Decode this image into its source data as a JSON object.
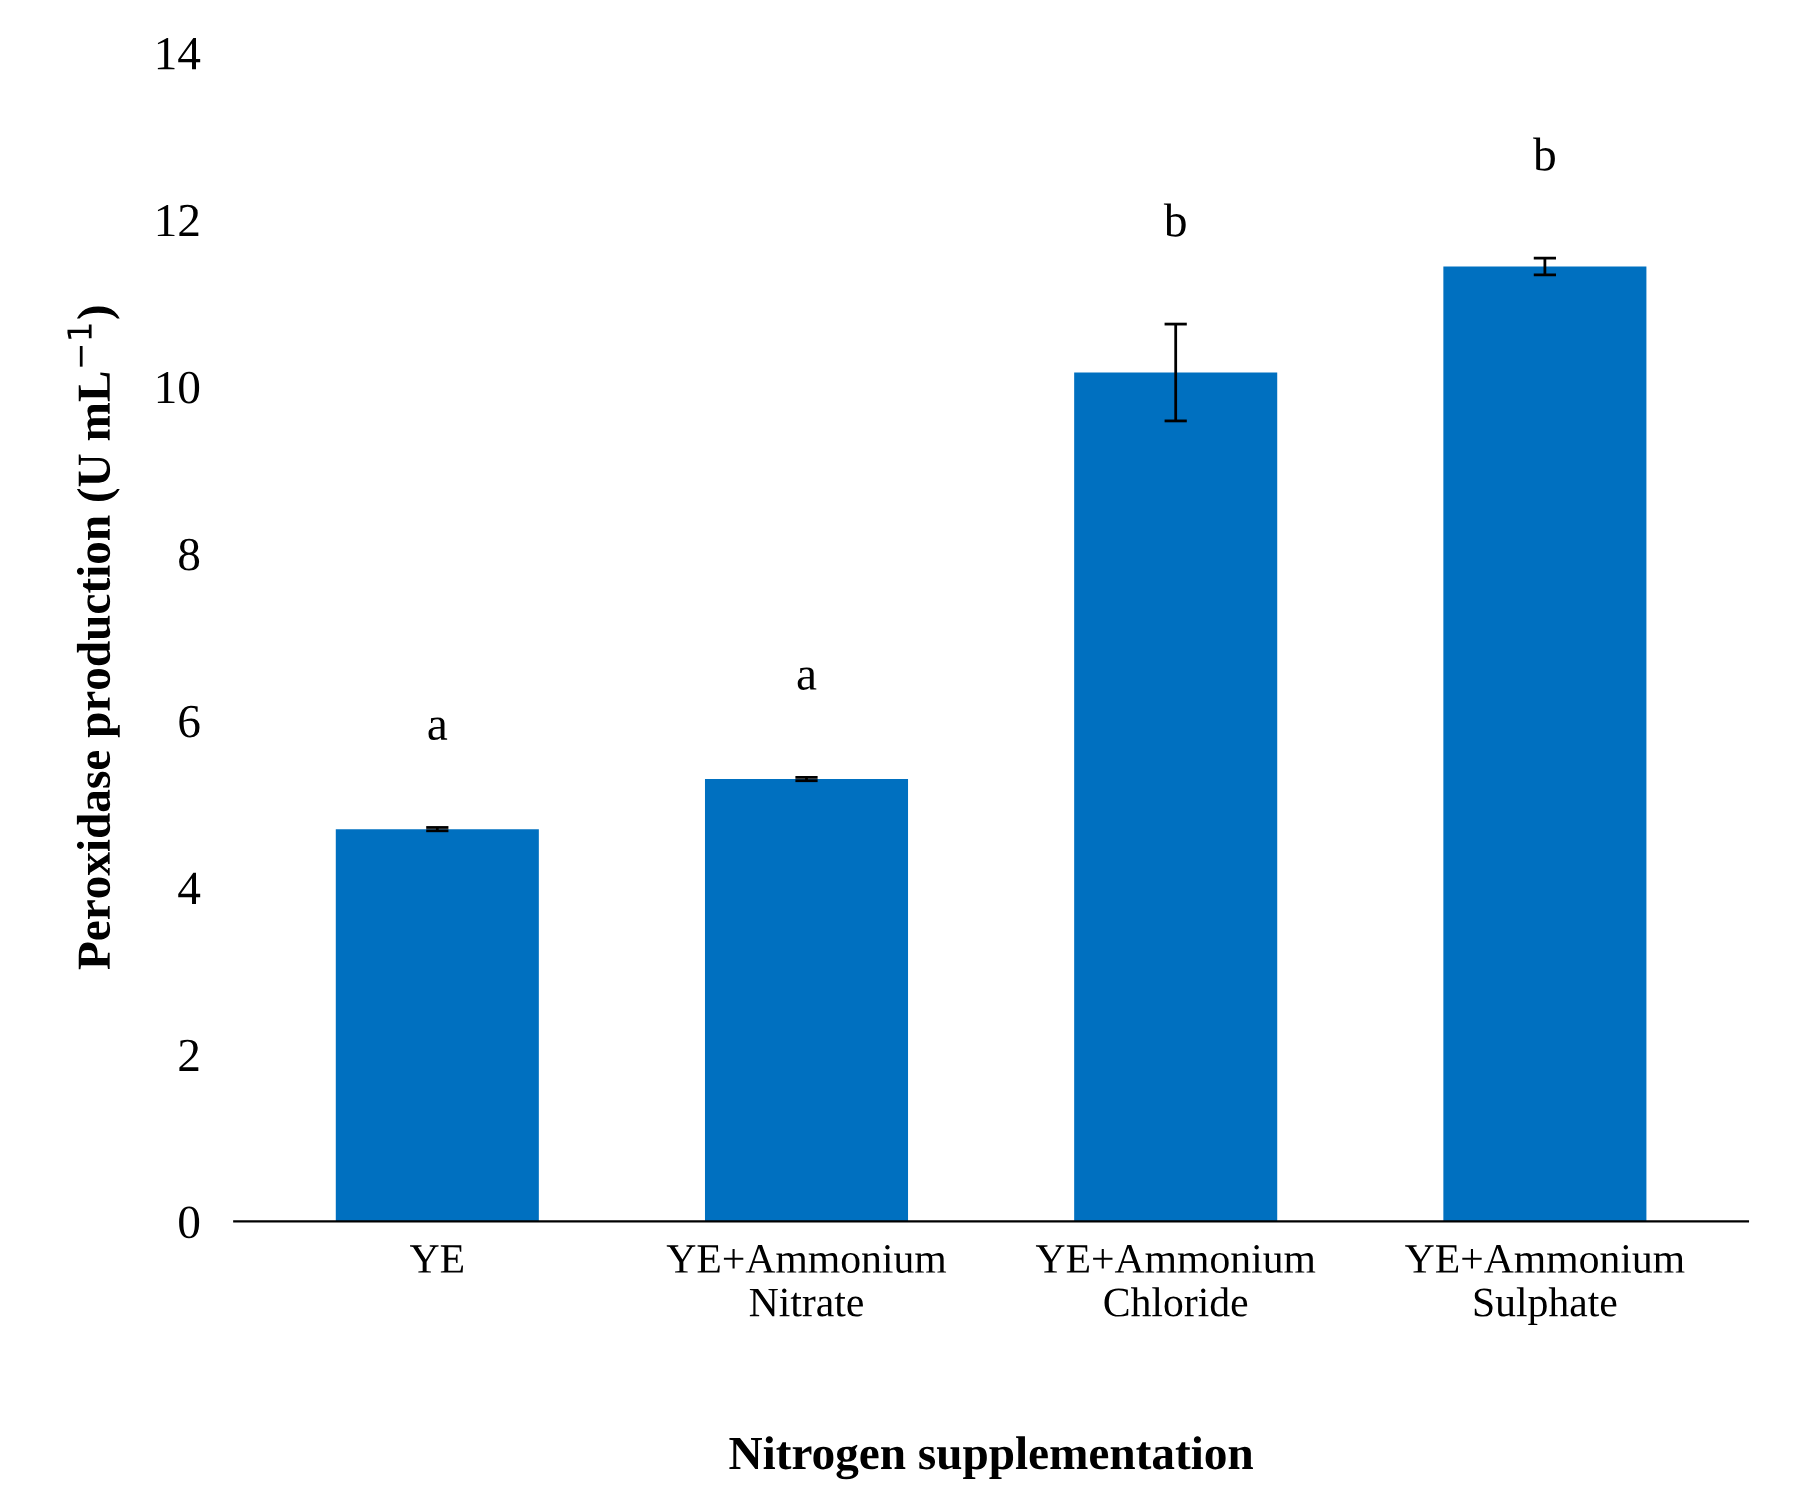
{
  "chart_data": {
    "type": "bar",
    "categories": [
      "YE",
      "YE+Ammonium\nNitrate",
      "YE+Ammonium\nChloride",
      "YE+Ammonium\nSulphate"
    ],
    "values": [
      4.7,
      5.3,
      10.17,
      11.44
    ],
    "errors": [
      0.02,
      0.02,
      0.58,
      0.1
    ],
    "colors": [
      "#0070c0",
      "#0070c0",
      "#0070c0",
      "#0070c0"
    ],
    "xlabel": "Nitrogen supplementation",
    "ylabel": "Peroxidase production (U mL$^{−1}$)",
    "ylim": [
      0,
      14
    ],
    "yticks": [
      0,
      2,
      4,
      6,
      8,
      10,
      12,
      14
    ],
    "grid": false,
    "annotations": [
      "a",
      "a",
      "b",
      "b"
    ]
  }
}
